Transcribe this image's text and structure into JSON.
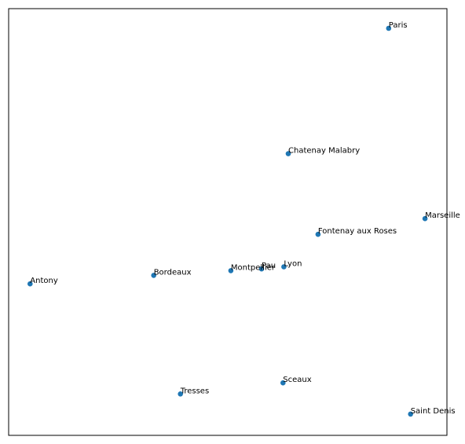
{
  "chart_data": {
    "type": "scatter",
    "title": "",
    "xlabel": "",
    "ylabel": "",
    "xlim": [
      0.0,
      1.0
    ],
    "ylim": [
      0.0,
      1.0
    ],
    "axis_ticks": false,
    "grid": false,
    "marker_color": "#1f77b4",
    "points": [
      {
        "label": "Paris",
        "x": 0.867,
        "y": 0.954
      },
      {
        "label": "Chatenay Malabry",
        "x": 0.638,
        "y": 0.66
      },
      {
        "label": "Marseille",
        "x": 0.95,
        "y": 0.508
      },
      {
        "label": "Fontenay aux Roses",
        "x": 0.706,
        "y": 0.471
      },
      {
        "label": "Lyon",
        "x": 0.628,
        "y": 0.395
      },
      {
        "label": "Pau",
        "x": 0.577,
        "y": 0.39
      },
      {
        "label": "Montpellier",
        "x": 0.507,
        "y": 0.386
      },
      {
        "label": "Bordeaux",
        "x": 0.331,
        "y": 0.375
      },
      {
        "label": "Antony",
        "x": 0.049,
        "y": 0.355
      },
      {
        "label": "Sceaux",
        "x": 0.626,
        "y": 0.123
      },
      {
        "label": "Tresses",
        "x": 0.392,
        "y": 0.097
      },
      {
        "label": "Saint Denis",
        "x": 0.917,
        "y": 0.05
      }
    ]
  }
}
